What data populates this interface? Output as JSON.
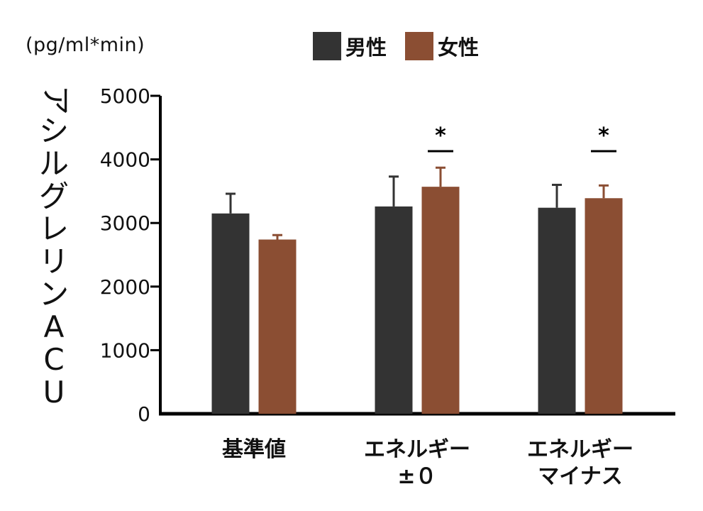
{
  "unit_label": "(pg/ml*min)",
  "legend": [
    {
      "label": "男性",
      "color": "#333333"
    },
    {
      "label": "女性",
      "color": "#8b4e33"
    }
  ],
  "ylabel_chars": [
    "ア",
    "シ",
    "ル",
    "グ",
    "レ",
    "リ",
    "ン",
    "A",
    "C",
    "U"
  ],
  "chart_data": {
    "type": "bar",
    "categories": [
      [
        "基準値"
      ],
      [
        "エネルギー",
        "±０"
      ],
      [
        "エネルギー",
        "マイナス"
      ]
    ],
    "series": [
      {
        "name": "男性",
        "color": "#333333",
        "values": [
          3150,
          3260,
          3240
        ],
        "errors": [
          310,
          470,
          360
        ]
      },
      {
        "name": "女性",
        "color": "#8b4e33",
        "values": [
          2740,
          3570,
          3390
        ],
        "errors": [
          70,
          300,
          200
        ]
      }
    ],
    "ylim": [
      0,
      5000
    ],
    "yticks": [
      0,
      1000,
      2000,
      3000,
      4000,
      5000
    ],
    "ylabel": "アシルグレリンACU",
    "significance": [
      {
        "category_index": 1,
        "symbol": "*"
      },
      {
        "category_index": 2,
        "symbol": "*"
      }
    ]
  }
}
